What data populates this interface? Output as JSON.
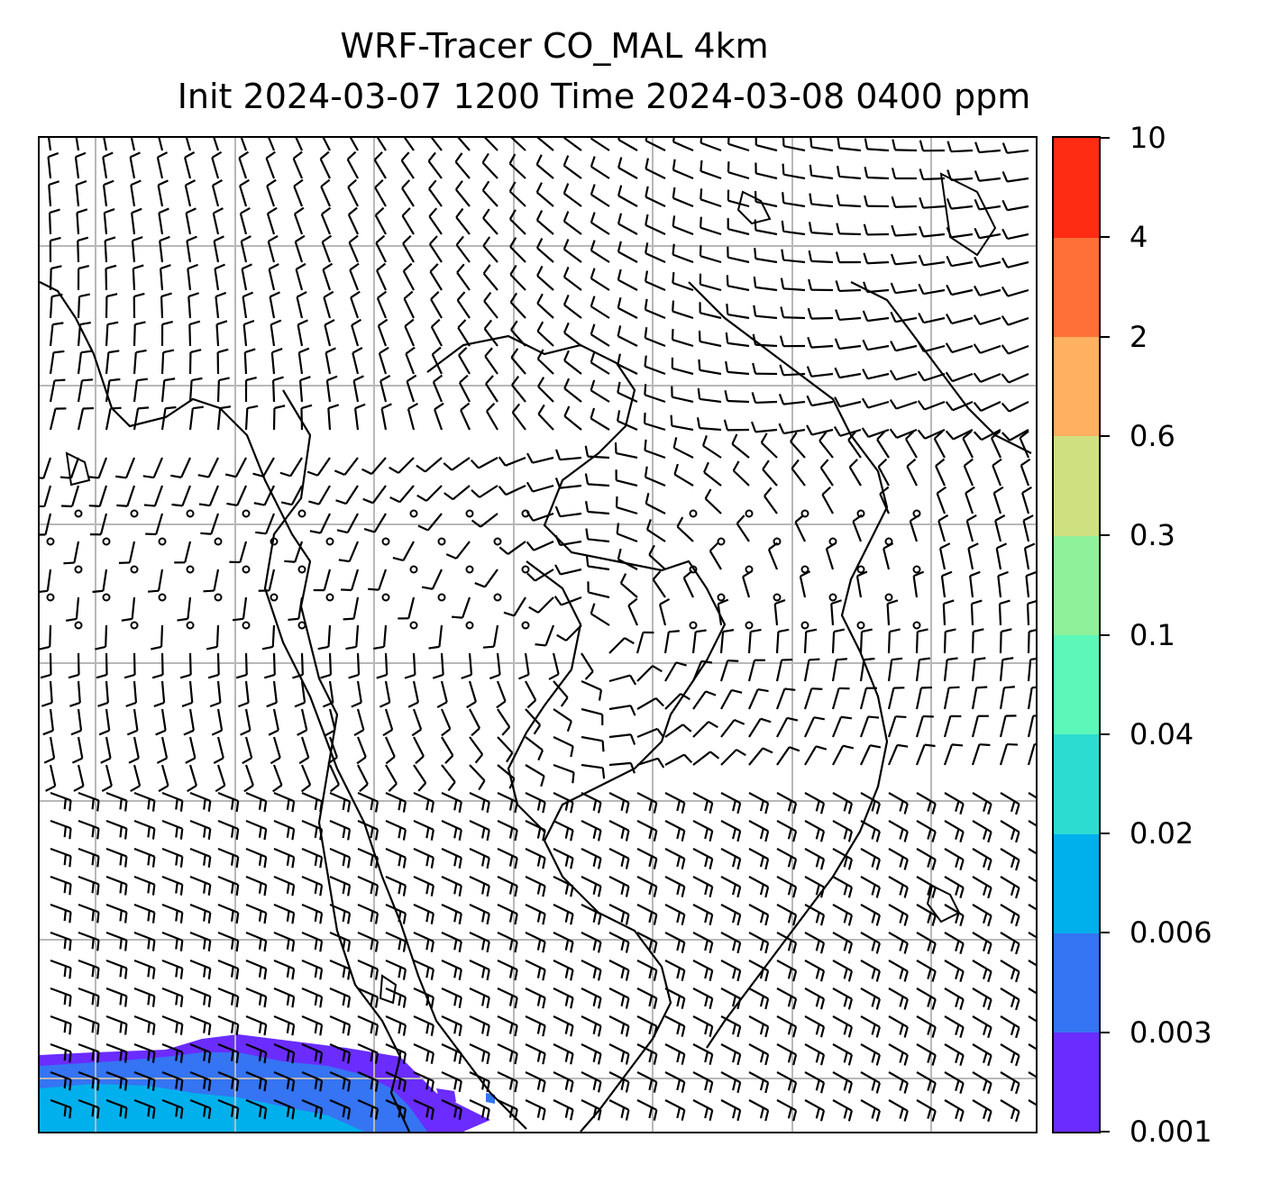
{
  "title_line1": "WRF-Tracer CO_MAL 4km",
  "title_line2": "Init 2024-03-07 1200 Time 2024-03-08 0400 ppm",
  "colorbar": {
    "ticks": [
      "0.001",
      "0.003",
      "0.006",
      "0.02",
      "0.04",
      "0.1",
      "0.3",
      "0.6",
      "2",
      "4",
      "10"
    ],
    "colors": [
      "#6a2cff",
      "#3574f2",
      "#00b0ec",
      "#2ddcd0",
      "#5cf7b9",
      "#8ff29a",
      "#cfe080",
      "#ffb060",
      "#ff7038",
      "#ff2c14"
    ]
  },
  "map": {
    "gridlines": true,
    "gridline_color": "#b8b8b8",
    "coastline_color": "#000000",
    "wind_barbs": true,
    "tracer_fill_colors": [
      "#6a2cff",
      "#3574f2",
      "#00b0ec"
    ]
  }
}
